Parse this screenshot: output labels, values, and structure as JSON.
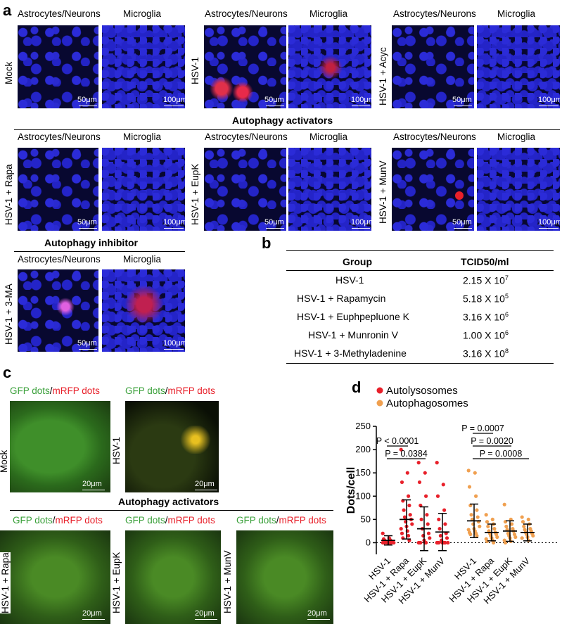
{
  "panel_a": {
    "letter": "a",
    "col_headers": [
      "Astrocytes/Neurons",
      "Microglia"
    ],
    "rows": [
      {
        "conditions": [
          "Mock",
          "HSV-1",
          "HSV-1 + Acyc"
        ]
      },
      {
        "section_title": "Autophagy activators",
        "conditions": [
          "HSV-1 + Rapa",
          "HSV-1 + EupK",
          "HSV-1 + MunV"
        ]
      },
      {
        "section_title": "Autophagy inhibitor",
        "conditions": [
          "HSV-1 + 3-MA"
        ]
      }
    ],
    "scalebars": [
      "50μm",
      "100μm"
    ]
  },
  "panel_b": {
    "letter": "b",
    "headers": [
      "Group",
      "TCID50/ml"
    ],
    "rows": [
      {
        "group": "HSV-1",
        "mantissa": "2.15 X 10",
        "exp": "7"
      },
      {
        "group": "HSV-1 + Rapamycin",
        "mantissa": "5.18 X 10",
        "exp": "5"
      },
      {
        "group": "HSV-1 + Euphpepluone K",
        "mantissa": "3.16 X 10",
        "exp": "6"
      },
      {
        "group": "HSV-1 + Munronin V",
        "mantissa": "1.00 X 10",
        "exp": "6"
      },
      {
        "group": "HSV-1 + 3-Methyladenine",
        "mantissa": "3.16 X 10",
        "exp": "8"
      }
    ]
  },
  "panel_c": {
    "letter": "c",
    "label_green": "GFP dots",
    "label_sep": "/",
    "label_red": "mRFP dots",
    "section_title": "Autophagy activators",
    "conditions": [
      "Mock",
      "HSV-1",
      "HSV-1 + Rapa",
      "HSV-1 + EupK",
      "HSV-1 + MunV"
    ],
    "scalebar": "20μm"
  },
  "panel_d": {
    "letter": "d",
    "chart_data": {
      "type": "scatter",
      "ylabel": "Dots/cell",
      "ylim": [
        -25,
        250
      ],
      "yticks": [
        0,
        50,
        100,
        150,
        200,
        250
      ],
      "legend": [
        {
          "name": "Autolysosomes",
          "color": "#e8202a"
        },
        {
          "name": "Autophagosomes",
          "color": "#f0a050"
        }
      ],
      "categories": [
        "HSV-1",
        "HSV-1 + Rapa",
        "HSV-1 + EupK",
        "HSV-1 + MunV",
        "HSV-1",
        "HSV-1 + Rapa",
        "HSV-1 + EupK",
        "HSV-1 + MunV"
      ],
      "series": [
        {
          "name": "Autolysosomes",
          "color": "#e8202a",
          "groups": [
            {
              "mean": 5,
              "sd": 10,
              "points": [
                20,
                10,
                8,
                6,
                5,
                4,
                3,
                2,
                2,
                1,
                0,
                0,
                0,
                0,
                0,
                0,
                0,
                0,
                0
              ]
            },
            {
              "mean": 50,
              "sd": 42,
              "points": [
                200,
                150,
                130,
                100,
                90,
                80,
                70,
                60,
                55,
                50,
                45,
                40,
                35,
                30,
                25,
                20,
                15,
                10,
                5
              ]
            },
            {
              "mean": 30,
              "sd": 47,
              "points": [
                172,
                150,
                130,
                100,
                80,
                60,
                50,
                40,
                30,
                20,
                15,
                10,
                5,
                0,
                0,
                0,
                0,
                0
              ]
            },
            {
              "mean": 23,
              "sd": 40,
              "points": [
                172,
                125,
                100,
                70,
                50,
                40,
                30,
                20,
                15,
                10,
                5,
                0,
                0,
                0,
                0,
                0,
                0,
                0,
                0
              ]
            }
          ]
        },
        {
          "name": "Autophagosomes",
          "color": "#f0a050",
          "groups": [
            {
              "mean": 47,
              "sd": 36,
              "points": [
                155,
                150,
                120,
                100,
                80,
                70,
                60,
                55,
                50,
                45,
                40,
                35,
                30,
                28,
                25,
                22,
                20,
                18,
                15
              ]
            },
            {
              "mean": 22,
              "sd": 18,
              "points": [
                60,
                50,
                45,
                40,
                35,
                30,
                25,
                22,
                20,
                18,
                15,
                12,
                10,
                8,
                5,
                3,
                0
              ]
            },
            {
              "mean": 25,
              "sd": 22,
              "points": [
                82,
                50,
                45,
                40,
                35,
                30,
                28,
                25,
                20,
                18,
                15,
                12,
                10,
                5,
                3,
                0
              ]
            },
            {
              "mean": 22,
              "sd": 18,
              "points": [
                55,
                50,
                45,
                40,
                35,
                30,
                28,
                25,
                22,
                20,
                18,
                15,
                12,
                10,
                5
              ]
            }
          ]
        }
      ],
      "annotations": [
        {
          "text": "P = 0.0384",
          "from": 0,
          "to": 2
        },
        {
          "text": "P < 0.0001",
          "from": 0,
          "to": 1
        },
        {
          "text": "P = 0.0008",
          "from": 4,
          "to": 7
        },
        {
          "text": "P = 0.0020",
          "from": 4,
          "to": 6
        },
        {
          "text": "P = 0.0007",
          "from": 4,
          "to": 5
        }
      ]
    }
  }
}
